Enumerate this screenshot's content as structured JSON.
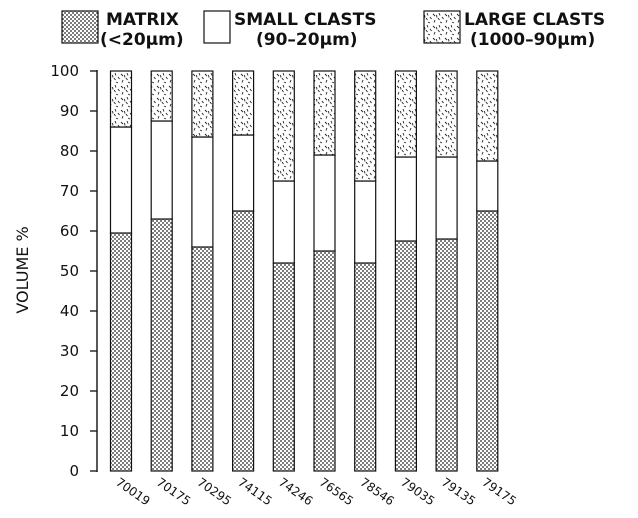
{
  "chart_data": {
    "type": "bar",
    "stacked": true,
    "title": "",
    "xlabel": "",
    "ylabel": "VOLUME %",
    "ylim": [
      0,
      100
    ],
    "yticks": [
      0,
      10,
      20,
      30,
      40,
      50,
      60,
      70,
      80,
      90,
      100
    ],
    "categories": [
      "70019",
      "70175",
      "70295",
      "74115",
      "74246",
      "76565",
      "78546",
      "79035",
      "79135",
      "79175"
    ],
    "series": [
      {
        "name": "MATRIX",
        "sublabel": "(<20µm)",
        "values": [
          59.5,
          63,
          56,
          65,
          52,
          55,
          52,
          57.5,
          58,
          65
        ]
      },
      {
        "name": "SMALL CLASTS",
        "sublabel": "(90–20µm)",
        "values": [
          26.5,
          24.5,
          27.5,
          19,
          20.5,
          24,
          20.5,
          21,
          20.5,
          12.5
        ]
      },
      {
        "name": "LARGE CLASTS",
        "sublabel": "(1000–90µm)",
        "values": [
          14,
          12.5,
          16.5,
          16,
          27.5,
          21,
          27.5,
          21.5,
          21.5,
          22.5
        ]
      }
    ],
    "legend_position": "top",
    "grid": false,
    "colors": {
      "ink": "#111111",
      "paper": "#ffffff"
    }
  }
}
